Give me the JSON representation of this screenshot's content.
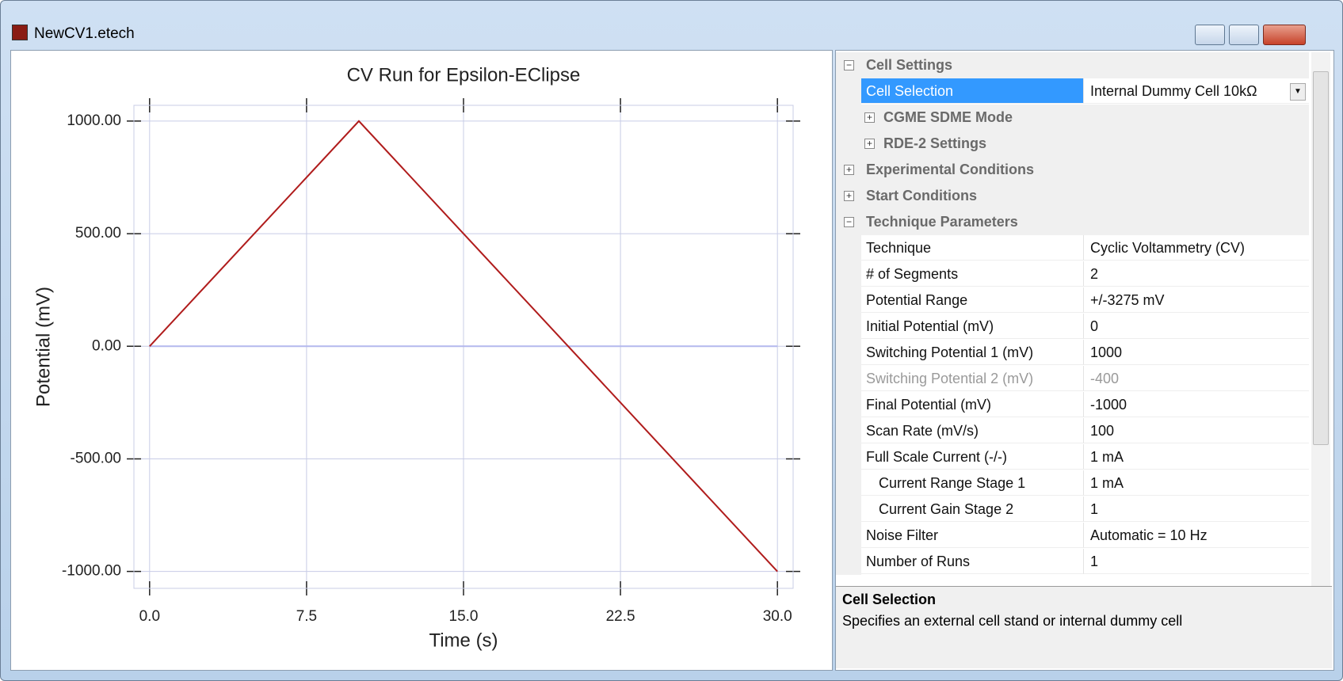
{
  "window": {
    "title": "NewCV1.etech"
  },
  "chart_data": {
    "type": "line",
    "title": "CV Run for Epsilon-EClipse",
    "xlabel": "Time (s)",
    "ylabel": "Potential (mV)",
    "series": [
      {
        "color": "#b01c1c",
        "x": [
          0,
          10,
          30
        ],
        "values": [
          0,
          1000,
          -1000
        ]
      },
      {
        "color": "#b4b8ee",
        "x": [
          0,
          30
        ],
        "values": [
          0,
          0
        ]
      }
    ],
    "xlim": [
      -0.75,
      30.75
    ],
    "ylim": [
      -1075,
      1070
    ],
    "xticks": [
      {
        "value": 0,
        "label": "0.0"
      },
      {
        "value": 7.5,
        "label": "7.5"
      },
      {
        "value": 15,
        "label": "15.0"
      },
      {
        "value": 22.5,
        "label": "22.5"
      },
      {
        "value": 30,
        "label": "30.0"
      }
    ],
    "yticks": [
      {
        "value": 1000,
        "label": "1000.00"
      },
      {
        "value": 500,
        "label": "500.00"
      },
      {
        "value": 0,
        "label": "0.00"
      },
      {
        "value": -500,
        "label": "-500.00"
      },
      {
        "value": -1000,
        "label": "-1000.00"
      }
    ],
    "grid": true
  },
  "grid": {
    "rows": [
      {
        "kind": "category",
        "level": 0,
        "expanded": true,
        "label": "Cell Settings"
      },
      {
        "kind": "property",
        "level": 1,
        "selected": true,
        "dropdown": true,
        "label": "Cell Selection",
        "value": "Internal Dummy Cell 10kΩ"
      },
      {
        "kind": "category",
        "level": 1,
        "expanded": false,
        "label": "CGME SDME Mode"
      },
      {
        "kind": "category",
        "level": 1,
        "expanded": false,
        "label": "RDE-2 Settings"
      },
      {
        "kind": "category",
        "level": 0,
        "expanded": false,
        "label": "Experimental Conditions"
      },
      {
        "kind": "category",
        "level": 0,
        "expanded": false,
        "label": "Start Conditions"
      },
      {
        "kind": "category",
        "level": 0,
        "expanded": true,
        "label": "Technique Parameters"
      },
      {
        "kind": "property",
        "level": 1,
        "label": "Technique",
        "value": "Cyclic Voltammetry (CV)"
      },
      {
        "kind": "property",
        "level": 1,
        "label": "# of Segments",
        "value": "2"
      },
      {
        "kind": "property",
        "level": 1,
        "label": "Potential Range",
        "value": "+/-3275 mV"
      },
      {
        "kind": "property",
        "level": 1,
        "label": "Initial Potential (mV)",
        "value": "0"
      },
      {
        "kind": "property",
        "level": 1,
        "label": "Switching Potential 1 (mV)",
        "value": "1000"
      },
      {
        "kind": "property",
        "level": 1,
        "disabled": true,
        "label": "Switching Potential 2 (mV)",
        "value": "-400"
      },
      {
        "kind": "property",
        "level": 1,
        "label": "Final Potential (mV)",
        "value": "-1000"
      },
      {
        "kind": "property",
        "level": 1,
        "label": "Scan Rate (mV/s)",
        "value": "100"
      },
      {
        "kind": "property",
        "level": 1,
        "label": "Full Scale Current (-/-)",
        "value": "1 mA"
      },
      {
        "kind": "property",
        "level": 2,
        "label": "Current Range Stage 1",
        "value": "1 mA"
      },
      {
        "kind": "property",
        "level": 2,
        "label": "Current Gain Stage 2",
        "value": "1"
      },
      {
        "kind": "property",
        "level": 1,
        "label": "Noise Filter",
        "value": "Automatic = 10 Hz"
      },
      {
        "kind": "property",
        "level": 1,
        "label": "Number of Runs",
        "value": "1"
      }
    ]
  },
  "description": {
    "title": "Cell Selection",
    "text": "Specifies an external cell stand or internal dummy cell"
  }
}
